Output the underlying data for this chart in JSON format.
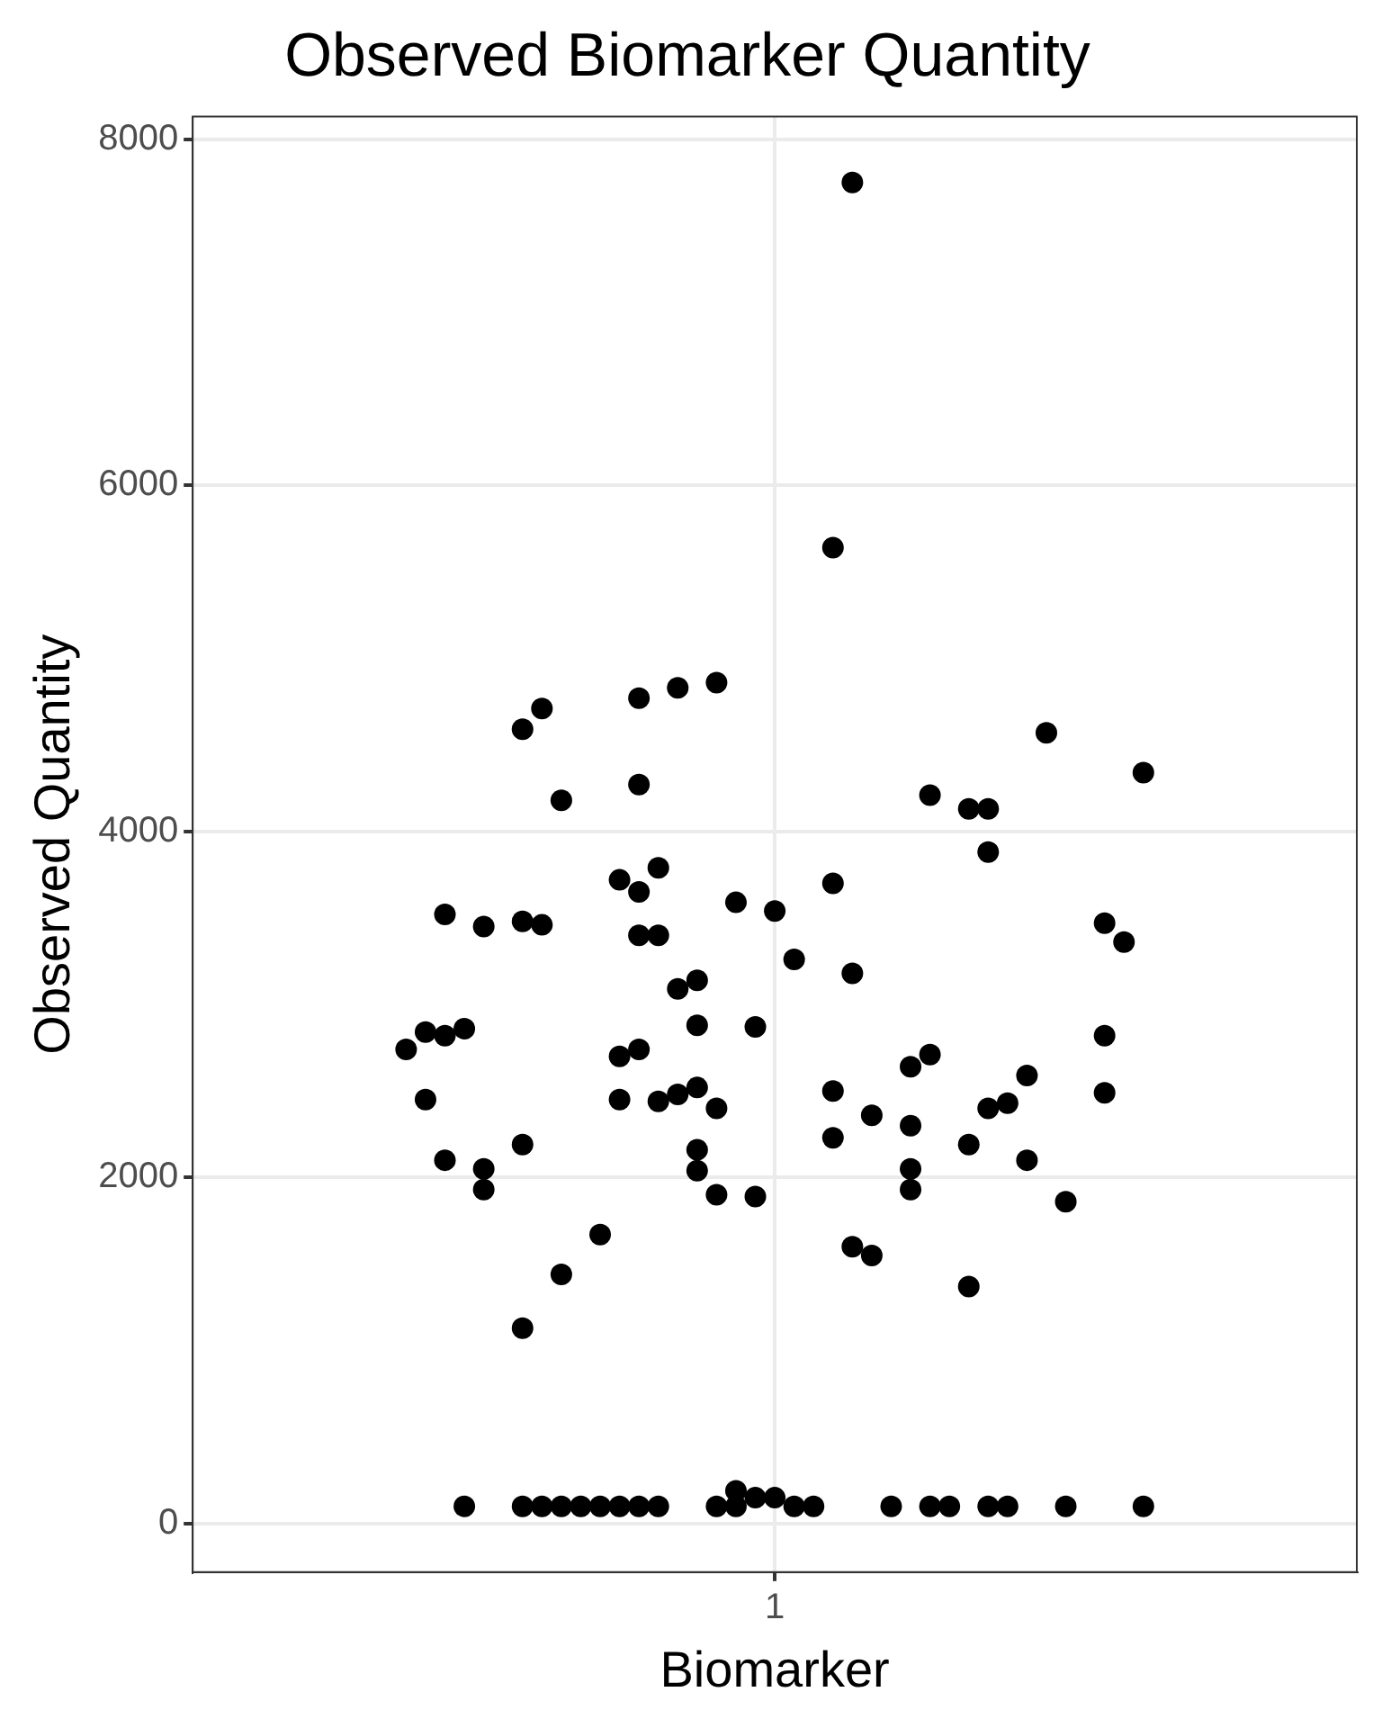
{
  "chart_data": {
    "type": "scatter",
    "title": "Observed Biomarker Quantity",
    "xlabel": "Biomarker",
    "ylabel": "Observed Quantity",
    "categories": [
      null,
      null,
      null,
      null,
      null,
      null,
      null,
      null,
      null,
      null,
      null,
      null,
      null,
      null,
      null,
      null,
      null,
      null,
      null,
      null,
      null,
      null,
      null,
      null,
      null,
      null,
      null,
      null,
      null,
      null,
      "1",
      null,
      null,
      null,
      null,
      null,
      null,
      null,
      null,
      null,
      null,
      null,
      null,
      null,
      null,
      null,
      null,
      null,
      null,
      null,
      null,
      null,
      null,
      null,
      null,
      null,
      null,
      null,
      null,
      null,
      null
    ],
    "ylim": [
      -280,
      8130
    ],
    "yticks": [
      0,
      2000,
      4000,
      6000,
      8000
    ],
    "grid": true,
    "marker": "circle",
    "legend": false,
    "series": [
      {
        "color": "#000000",
        "values": [
          null,
          null,
          null,
          null,
          null,
          null,
          null,
          null,
          null,
          null,
          null,
          2740,
          2840,
          3520,
          2860,
          3450,
          null,
          4590,
          4710,
          4180,
          100,
          1670,
          3720,
          4770,
          3790,
          4830,
          2880,
          4860,
          3590,
          2870,
          3540,
          3260,
          100,
          5640,
          7750,
          2360,
          100,
          2640,
          4210,
          100,
          4130,
          4130,
          2430,
          2590,
          4570,
          1860,
          null,
          3470,
          3360,
          4340,
          null,
          null,
          null,
          null,
          null,
          null,
          null,
          null,
          null,
          null,
          null
        ]
      },
      {
        "color": "#000000",
        "values": [
          null,
          null,
          null,
          null,
          null,
          null,
          null,
          null,
          null,
          null,
          null,
          null,
          2450,
          2820,
          100,
          2050,
          null,
          3480,
          3460,
          1440,
          null,
          100,
          2700,
          4270,
          3400,
          3090,
          2160,
          2400,
          100,
          1890,
          150,
          100,
          null,
          3700,
          3180,
          1550,
          null,
          2300,
          2710,
          null,
          2190,
          3880,
          100,
          2100,
          null,
          100,
          null,
          2820,
          null,
          100,
          null,
          null,
          null,
          null,
          null,
          null,
          null,
          null,
          null,
          null,
          null
        ]
      },
      {
        "color": "#000000",
        "values": [
          null,
          null,
          null,
          null,
          null,
          null,
          null,
          null,
          null,
          null,
          null,
          null,
          null,
          2100,
          null,
          1930,
          null,
          2190,
          100,
          100,
          null,
          null,
          2450,
          3650,
          100,
          2480,
          2040,
          1900,
          190,
          150,
          null,
          null,
          null,
          2500,
          1600,
          null,
          null,
          2050,
          100,
          null,
          1370,
          2400,
          null,
          null,
          null,
          null,
          null,
          2490,
          null,
          null,
          null,
          null,
          null,
          null,
          null,
          null,
          null,
          null,
          null,
          null,
          null
        ]
      },
      {
        "color": "#000000",
        "values": [
          null,
          null,
          null,
          null,
          null,
          null,
          null,
          null,
          null,
          null,
          null,
          null,
          null,
          null,
          null,
          null,
          null,
          1130,
          null,
          null,
          null,
          null,
          100,
          2740,
          2440,
          null,
          3140,
          100,
          null,
          null,
          null,
          null,
          null,
          2230,
          null,
          null,
          null,
          1930,
          null,
          null,
          null,
          100,
          null,
          null,
          null,
          null,
          null,
          null,
          null,
          null,
          null,
          null,
          null,
          null,
          null,
          null,
          null,
          null,
          null,
          null,
          null
        ]
      },
      {
        "color": "#000000",
        "values": [
          null,
          null,
          null,
          null,
          null,
          null,
          null,
          null,
          null,
          null,
          null,
          null,
          null,
          null,
          null,
          null,
          null,
          100,
          null,
          null,
          null,
          null,
          null,
          3400,
          null,
          null,
          2520,
          null,
          null,
          null,
          null,
          null,
          null,
          null,
          null,
          null,
          null,
          null,
          null,
          null,
          null,
          null,
          null,
          null,
          null,
          null,
          null,
          null,
          null,
          null,
          null,
          null,
          null,
          null,
          null,
          null,
          null,
          null,
          null,
          null,
          null
        ]
      },
      {
        "color": "#000000",
        "values": [
          null,
          null,
          null,
          null,
          null,
          null,
          null,
          null,
          null,
          null,
          null,
          null,
          null,
          null,
          null,
          null,
          null,
          null,
          null,
          null,
          null,
          null,
          null,
          100,
          null,
          null,
          null,
          null,
          null,
          null,
          null,
          null,
          null,
          null,
          null,
          null,
          null,
          null,
          null,
          null,
          null,
          null,
          null,
          null,
          null,
          null,
          null,
          null,
          null,
          null,
          null,
          null,
          null,
          null,
          null,
          null,
          null,
          null,
          null,
          null,
          null
        ]
      }
    ]
  }
}
